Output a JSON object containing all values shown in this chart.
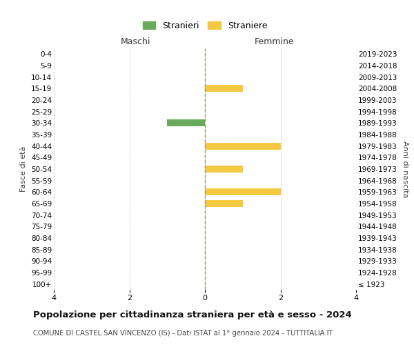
{
  "age_groups": [
    "0-4",
    "5-9",
    "10-14",
    "15-19",
    "20-24",
    "25-29",
    "30-34",
    "35-39",
    "40-44",
    "45-49",
    "50-54",
    "55-59",
    "60-64",
    "65-69",
    "70-74",
    "75-79",
    "80-84",
    "85-89",
    "90-94",
    "95-99",
    "100+"
  ],
  "birth_years": [
    "2019-2023",
    "2014-2018",
    "2009-2013",
    "2004-2008",
    "1999-2003",
    "1994-1998",
    "1989-1993",
    "1984-1988",
    "1979-1983",
    "1974-1978",
    "1969-1973",
    "1964-1968",
    "1959-1963",
    "1954-1958",
    "1949-1953",
    "1944-1948",
    "1939-1943",
    "1934-1938",
    "1929-1933",
    "1924-1928",
    "≤ 1923"
  ],
  "maschi_stranieri": [
    0,
    0,
    0,
    0,
    0,
    0,
    1,
    0,
    0,
    0,
    0,
    0,
    0,
    0,
    0,
    0,
    0,
    0,
    0,
    0,
    0
  ],
  "femmine_straniere": [
    0,
    0,
    0,
    1,
    0,
    0,
    0,
    0,
    2,
    0,
    1,
    0,
    2,
    1,
    0,
    0,
    0,
    0,
    0,
    0,
    0
  ],
  "color_maschi": "#6aaa5c",
  "color_femmine": "#f5c842",
  "xlim": 4,
  "title": "Popolazione per cittadinanza straniera per età e sesso - 2024",
  "subtitle": "COMUNE DI CASTEL SAN VINCENZO (IS) - Dati ISTAT al 1° gennaio 2024 - TUTTITALIA.IT",
  "ylabel_left": "Fasce di età",
  "ylabel_right": "Anni di nascita",
  "legend_maschi": "Stranieri",
  "legend_femmine": "Straniere",
  "header_maschi": "Maschi",
  "header_femmine": "Femmine",
  "bg_color": "#ffffff",
  "grid_color": "#cccccc",
  "center_line_color": "#999966"
}
